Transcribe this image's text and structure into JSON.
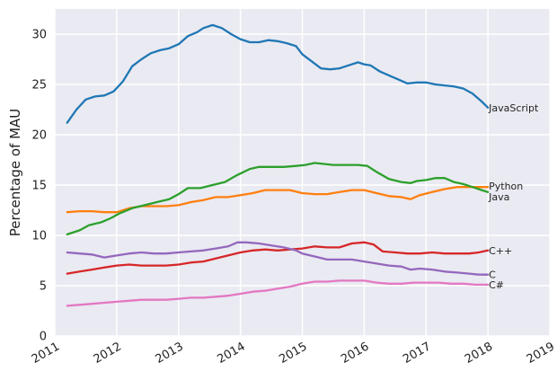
{
  "chart_data": {
    "type": "line",
    "title": "",
    "xlabel": "",
    "ylabel": "Percentage of MAU",
    "xlim": [
      2011.0,
      2019.0
    ],
    "ylim": [
      0,
      32.5
    ],
    "grid": true,
    "x_ticks": [
      2011,
      2012,
      2013,
      2014,
      2015,
      2016,
      2017,
      2018,
      2019
    ],
    "x_tick_labels": [
      "2011",
      "2012",
      "2013",
      "2014",
      "2015",
      "2016",
      "2017",
      "2018",
      "2019"
    ],
    "y_ticks": [
      0,
      5,
      10,
      15,
      20,
      25,
      30
    ],
    "y_tick_labels": [
      "0",
      "5",
      "10",
      "15",
      "20",
      "25",
      "30"
    ],
    "series": [
      {
        "name": "JavaScript",
        "color": "#1f77b4",
        "points": [
          [
            2011.2,
            21.2
          ],
          [
            2011.35,
            22.5
          ],
          [
            2011.5,
            23.5
          ],
          [
            2011.65,
            23.8
          ],
          [
            2011.8,
            23.9
          ],
          [
            2011.95,
            24.3
          ],
          [
            2012.1,
            25.3
          ],
          [
            2012.25,
            26.8
          ],
          [
            2012.4,
            27.5
          ],
          [
            2012.55,
            28.1
          ],
          [
            2012.7,
            28.4
          ],
          [
            2012.85,
            28.6
          ],
          [
            2013.0,
            29.0
          ],
          [
            2013.15,
            29.8
          ],
          [
            2013.3,
            30.2
          ],
          [
            2013.4,
            30.6
          ],
          [
            2013.55,
            30.9
          ],
          [
            2013.7,
            30.6
          ],
          [
            2013.85,
            30.0
          ],
          [
            2014.0,
            29.5
          ],
          [
            2014.15,
            29.2
          ],
          [
            2014.3,
            29.2
          ],
          [
            2014.45,
            29.4
          ],
          [
            2014.6,
            29.3
          ],
          [
            2014.75,
            29.1
          ],
          [
            2014.9,
            28.8
          ],
          [
            2015.0,
            28.0
          ],
          [
            2015.15,
            27.3
          ],
          [
            2015.3,
            26.6
          ],
          [
            2015.45,
            26.5
          ],
          [
            2015.6,
            26.6
          ],
          [
            2015.75,
            26.9
          ],
          [
            2015.9,
            27.2
          ],
          [
            2016.0,
            27.0
          ],
          [
            2016.1,
            26.9
          ],
          [
            2016.25,
            26.3
          ],
          [
            2016.4,
            25.9
          ],
          [
            2016.55,
            25.5
          ],
          [
            2016.7,
            25.1
          ],
          [
            2016.85,
            25.2
          ],
          [
            2017.0,
            25.2
          ],
          [
            2017.15,
            25.0
          ],
          [
            2017.3,
            24.9
          ],
          [
            2017.45,
            24.8
          ],
          [
            2017.6,
            24.6
          ],
          [
            2017.75,
            24.1
          ],
          [
            2017.9,
            23.3
          ],
          [
            2018.0,
            22.7
          ]
        ]
      },
      {
        "name": "Python",
        "color": "#ff7f0e",
        "points": [
          [
            2011.2,
            12.3
          ],
          [
            2011.4,
            12.4
          ],
          [
            2011.6,
            12.4
          ],
          [
            2011.8,
            12.3
          ],
          [
            2012.0,
            12.3
          ],
          [
            2012.2,
            12.7
          ],
          [
            2012.4,
            12.9
          ],
          [
            2012.6,
            12.9
          ],
          [
            2012.8,
            12.9
          ],
          [
            2013.0,
            13.0
          ],
          [
            2013.2,
            13.3
          ],
          [
            2013.4,
            13.5
          ],
          [
            2013.6,
            13.8
          ],
          [
            2013.8,
            13.8
          ],
          [
            2014.0,
            14.0
          ],
          [
            2014.2,
            14.2
          ],
          [
            2014.4,
            14.5
          ],
          [
            2014.6,
            14.5
          ],
          [
            2014.8,
            14.5
          ],
          [
            2015.0,
            14.2
          ],
          [
            2015.2,
            14.1
          ],
          [
            2015.4,
            14.1
          ],
          [
            2015.6,
            14.3
          ],
          [
            2015.8,
            14.5
          ],
          [
            2016.0,
            14.5
          ],
          [
            2016.2,
            14.2
          ],
          [
            2016.4,
            13.9
          ],
          [
            2016.6,
            13.8
          ],
          [
            2016.75,
            13.6
          ],
          [
            2016.9,
            14.0
          ],
          [
            2017.1,
            14.3
          ],
          [
            2017.3,
            14.6
          ],
          [
            2017.5,
            14.8
          ],
          [
            2017.7,
            14.8
          ],
          [
            2017.85,
            14.8
          ],
          [
            2018.0,
            14.8
          ]
        ]
      },
      {
        "name": "Java",
        "color": "#2ca02c",
        "points": [
          [
            2011.2,
            10.1
          ],
          [
            2011.4,
            10.5
          ],
          [
            2011.55,
            11.0
          ],
          [
            2011.75,
            11.3
          ],
          [
            2011.9,
            11.7
          ],
          [
            2012.05,
            12.2
          ],
          [
            2012.25,
            12.7
          ],
          [
            2012.45,
            13.0
          ],
          [
            2012.65,
            13.3
          ],
          [
            2012.85,
            13.6
          ],
          [
            2013.0,
            14.1
          ],
          [
            2013.15,
            14.7
          ],
          [
            2013.35,
            14.7
          ],
          [
            2013.55,
            15.0
          ],
          [
            2013.75,
            15.3
          ],
          [
            2013.95,
            16.0
          ],
          [
            2014.15,
            16.6
          ],
          [
            2014.3,
            16.8
          ],
          [
            2014.5,
            16.8
          ],
          [
            2014.7,
            16.8
          ],
          [
            2014.9,
            16.9
          ],
          [
            2015.05,
            17.0
          ],
          [
            2015.2,
            17.2
          ],
          [
            2015.35,
            17.1
          ],
          [
            2015.5,
            17.0
          ],
          [
            2015.7,
            17.0
          ],
          [
            2015.9,
            17.0
          ],
          [
            2016.05,
            16.9
          ],
          [
            2016.2,
            16.3
          ],
          [
            2016.4,
            15.6
          ],
          [
            2016.6,
            15.3
          ],
          [
            2016.75,
            15.2
          ],
          [
            2016.85,
            15.4
          ],
          [
            2017.0,
            15.5
          ],
          [
            2017.15,
            15.7
          ],
          [
            2017.3,
            15.7
          ],
          [
            2017.45,
            15.3
          ],
          [
            2017.6,
            15.1
          ],
          [
            2017.75,
            14.8
          ],
          [
            2017.9,
            14.5
          ],
          [
            2018.0,
            14.3
          ]
        ]
      },
      {
        "name": "C++",
        "color": "#d62728",
        "points": [
          [
            2011.2,
            6.2
          ],
          [
            2011.4,
            6.4
          ],
          [
            2011.6,
            6.6
          ],
          [
            2011.8,
            6.8
          ],
          [
            2012.0,
            7.0
          ],
          [
            2012.2,
            7.1
          ],
          [
            2012.4,
            7.0
          ],
          [
            2012.6,
            7.0
          ],
          [
            2012.8,
            7.0
          ],
          [
            2013.0,
            7.1
          ],
          [
            2013.2,
            7.3
          ],
          [
            2013.4,
            7.4
          ],
          [
            2013.6,
            7.7
          ],
          [
            2013.8,
            8.0
          ],
          [
            2014.0,
            8.3
          ],
          [
            2014.2,
            8.5
          ],
          [
            2014.4,
            8.6
          ],
          [
            2014.6,
            8.5
          ],
          [
            2014.8,
            8.6
          ],
          [
            2015.0,
            8.7
          ],
          [
            2015.2,
            8.9
          ],
          [
            2015.4,
            8.8
          ],
          [
            2015.6,
            8.8
          ],
          [
            2015.8,
            9.2
          ],
          [
            2016.0,
            9.3
          ],
          [
            2016.15,
            9.1
          ],
          [
            2016.3,
            8.4
          ],
          [
            2016.5,
            8.3
          ],
          [
            2016.7,
            8.2
          ],
          [
            2016.9,
            8.2
          ],
          [
            2017.1,
            8.3
          ],
          [
            2017.3,
            8.2
          ],
          [
            2017.5,
            8.2
          ],
          [
            2017.7,
            8.2
          ],
          [
            2017.85,
            8.3
          ],
          [
            2018.0,
            8.5
          ]
        ]
      },
      {
        "name": "C",
        "color": "#9467bd",
        "points": [
          [
            2011.2,
            8.3
          ],
          [
            2011.4,
            8.2
          ],
          [
            2011.6,
            8.1
          ],
          [
            2011.8,
            7.8
          ],
          [
            2012.0,
            8.0
          ],
          [
            2012.2,
            8.2
          ],
          [
            2012.4,
            8.3
          ],
          [
            2012.6,
            8.2
          ],
          [
            2012.8,
            8.2
          ],
          [
            2013.0,
            8.3
          ],
          [
            2013.2,
            8.4
          ],
          [
            2013.4,
            8.5
          ],
          [
            2013.6,
            8.7
          ],
          [
            2013.8,
            8.9
          ],
          [
            2013.95,
            9.3
          ],
          [
            2014.1,
            9.3
          ],
          [
            2014.3,
            9.2
          ],
          [
            2014.5,
            9.0
          ],
          [
            2014.7,
            8.8
          ],
          [
            2014.9,
            8.5
          ],
          [
            2015.0,
            8.2
          ],
          [
            2015.2,
            7.9
          ],
          [
            2015.4,
            7.6
          ],
          [
            2015.6,
            7.6
          ],
          [
            2015.8,
            7.6
          ],
          [
            2016.0,
            7.4
          ],
          [
            2016.2,
            7.2
          ],
          [
            2016.4,
            7.0
          ],
          [
            2016.6,
            6.9
          ],
          [
            2016.75,
            6.6
          ],
          [
            2016.9,
            6.7
          ],
          [
            2017.1,
            6.6
          ],
          [
            2017.3,
            6.4
          ],
          [
            2017.5,
            6.3
          ],
          [
            2017.7,
            6.2
          ],
          [
            2017.85,
            6.1
          ],
          [
            2018.0,
            6.1
          ]
        ]
      },
      {
        "name": "C#",
        "color": "#e377c2",
        "points": [
          [
            2011.2,
            3.0
          ],
          [
            2011.4,
            3.1
          ],
          [
            2011.6,
            3.2
          ],
          [
            2011.8,
            3.3
          ],
          [
            2012.0,
            3.4
          ],
          [
            2012.2,
            3.5
          ],
          [
            2012.4,
            3.6
          ],
          [
            2012.6,
            3.6
          ],
          [
            2012.8,
            3.6
          ],
          [
            2013.0,
            3.7
          ],
          [
            2013.2,
            3.8
          ],
          [
            2013.4,
            3.8
          ],
          [
            2013.6,
            3.9
          ],
          [
            2013.8,
            4.0
          ],
          [
            2014.0,
            4.2
          ],
          [
            2014.2,
            4.4
          ],
          [
            2014.4,
            4.5
          ],
          [
            2014.6,
            4.7
          ],
          [
            2014.8,
            4.9
          ],
          [
            2015.0,
            5.2
          ],
          [
            2015.2,
            5.4
          ],
          [
            2015.4,
            5.4
          ],
          [
            2015.6,
            5.5
          ],
          [
            2015.8,
            5.5
          ],
          [
            2016.0,
            5.5
          ],
          [
            2016.2,
            5.3
          ],
          [
            2016.4,
            5.2
          ],
          [
            2016.6,
            5.2
          ],
          [
            2016.8,
            5.3
          ],
          [
            2017.0,
            5.3
          ],
          [
            2017.2,
            5.3
          ],
          [
            2017.4,
            5.2
          ],
          [
            2017.6,
            5.2
          ],
          [
            2017.8,
            5.1
          ],
          [
            2018.0,
            5.1
          ]
        ]
      }
    ]
  }
}
